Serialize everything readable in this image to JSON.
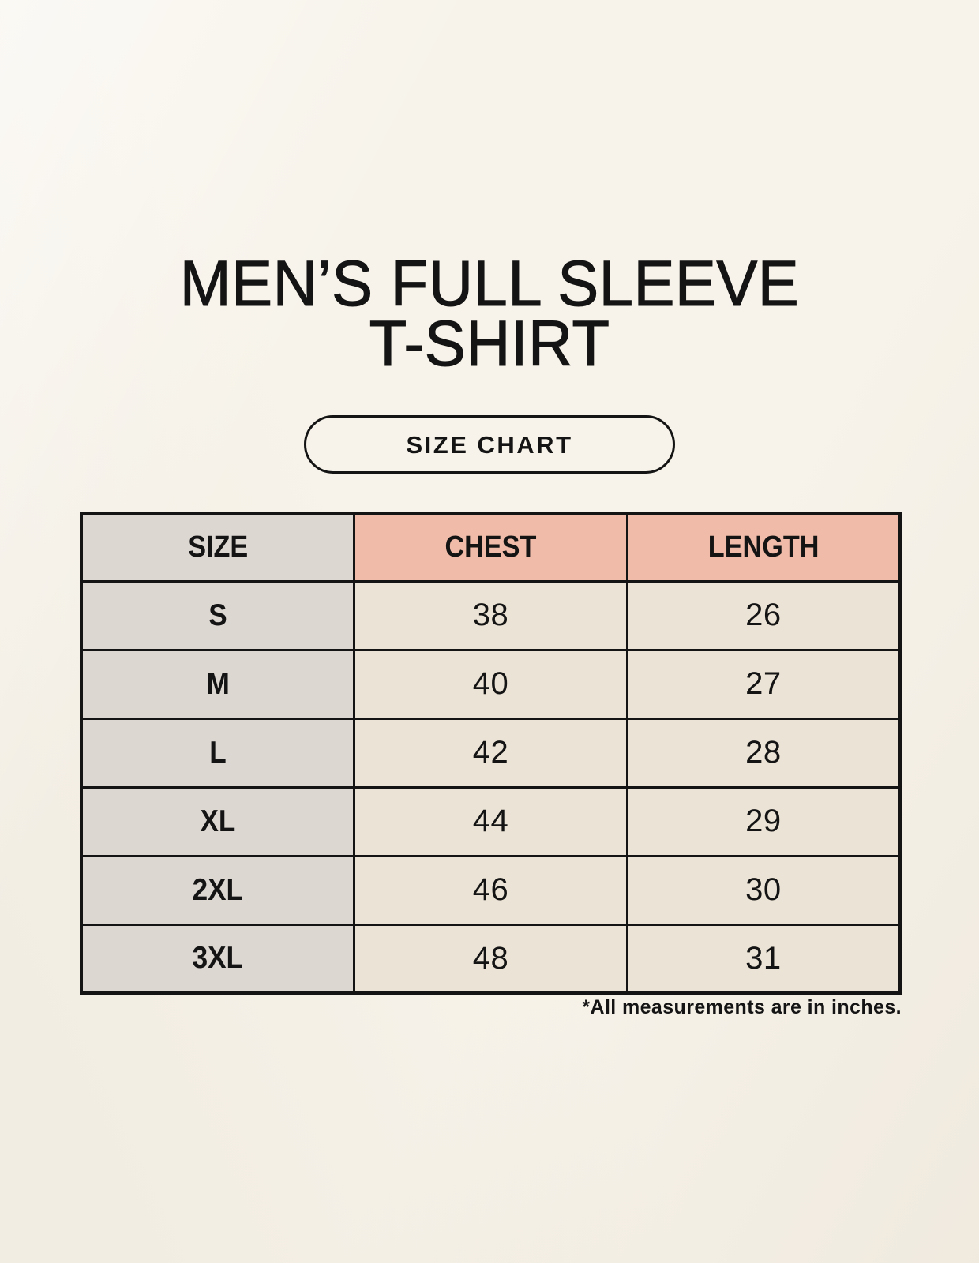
{
  "title": {
    "line1": "MEN’S FULL SLEEVE",
    "line2": "T-SHIRT"
  },
  "badge": {
    "label": "SIZE CHART"
  },
  "table": {
    "headers": [
      "SIZE",
      "CHEST",
      "LENGTH"
    ],
    "rows": [
      {
        "size": "S",
        "chest": "38",
        "length": "26"
      },
      {
        "size": "M",
        "chest": "40",
        "length": "27"
      },
      {
        "size": "L",
        "chest": "42",
        "length": "28"
      },
      {
        "size": "XL",
        "chest": "44",
        "length": "29"
      },
      {
        "size": "2XL",
        "chest": "46",
        "length": "30"
      },
      {
        "size": "3XL",
        "chest": "48",
        "length": "31"
      }
    ]
  },
  "footnote": "*All measurements are in inches.",
  "colors": {
    "background": "#f7f3ea",
    "header_size_bg": "#ddd7d2",
    "header_measure_bg": "#f0bba9",
    "size_col_bg": "#ddd7d2",
    "data_cell_bg": "#ebe3d5",
    "border": "#141414",
    "text": "#141414"
  },
  "chart_data": {
    "type": "table",
    "title": "MEN’S FULL SLEEVE T-SHIRT — SIZE CHART",
    "columns": [
      "SIZE",
      "CHEST",
      "LENGTH"
    ],
    "rows": [
      [
        "S",
        38,
        26
      ],
      [
        "M",
        40,
        27
      ],
      [
        "L",
        42,
        28
      ],
      [
        "XL",
        44,
        29
      ],
      [
        "2XL",
        46,
        30
      ],
      [
        "3XL",
        48,
        31
      ]
    ],
    "units": "inches"
  }
}
